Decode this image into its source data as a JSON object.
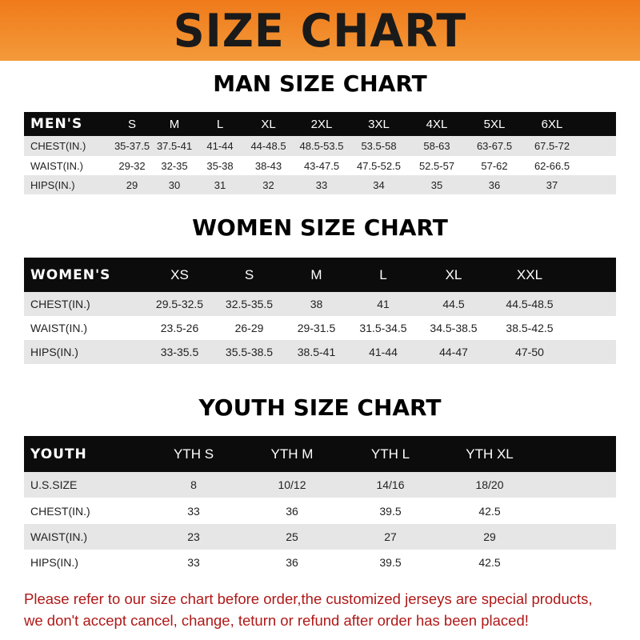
{
  "title": "SIZE CHART",
  "men": {
    "title": "MAN SIZE CHART",
    "header": [
      "MEN'S",
      "S",
      "M",
      "L",
      "XL",
      "2XL",
      "3XL",
      "4XL",
      "5XL",
      "6XL"
    ],
    "rows": [
      [
        "CHEST(IN.)",
        "35-37.5",
        "37.5-41",
        "41-44",
        "44-48.5",
        "48.5-53.5",
        "53.5-58",
        "58-63",
        "63-67.5",
        "67.5-72"
      ],
      [
        "WAIST(IN.)",
        "29-32",
        "32-35",
        "35-38",
        "38-43",
        "43-47.5",
        "47.5-52.5",
        "52.5-57",
        "57-62",
        "62-66.5"
      ],
      [
        "HIPS(IN.)",
        "29",
        "30",
        "31",
        "32",
        "33",
        "34",
        "35",
        "36",
        "37"
      ]
    ]
  },
  "women": {
    "title": "WOMEN SIZE CHART",
    "header": [
      "WOMEN'S",
      "XS",
      "S",
      "M",
      "L",
      "XL",
      "XXL"
    ],
    "rows": [
      [
        "CHEST(IN.)",
        "29.5-32.5",
        "32.5-35.5",
        "38",
        "41",
        "44.5",
        "44.5-48.5"
      ],
      [
        "WAIST(IN.)",
        "23.5-26",
        "26-29",
        "29-31.5",
        "31.5-34.5",
        "34.5-38.5",
        "38.5-42.5"
      ],
      [
        "HIPS(IN.)",
        "33-35.5",
        "35.5-38.5",
        "38.5-41",
        "41-44",
        "44-47",
        "47-50"
      ]
    ]
  },
  "youth": {
    "title": "YOUTH SIZE CHART",
    "header": [
      "YOUTH",
      "YTH S",
      "YTH M",
      "YTH L",
      "YTH XL"
    ],
    "rows": [
      [
        "U.S.SIZE",
        "8",
        "10/12",
        "14/16",
        "18/20"
      ],
      [
        "CHEST(IN.)",
        "33",
        "36",
        "39.5",
        "42.5"
      ],
      [
        "WAIST(IN.)",
        "23",
        "25",
        "27",
        "29"
      ],
      [
        "HIPS(IN.)",
        "33",
        "36",
        "39.5",
        "42.5"
      ]
    ]
  },
  "note": [
    "Please refer to our size chart before order,the customized jerseys are special products,",
    "we don't accept cancel, change, teturn or refund after order has been placed!"
  ],
  "colors": {
    "banner": "#f07a1a",
    "header_row": "#0c0c0c",
    "note": "#b01818"
  }
}
